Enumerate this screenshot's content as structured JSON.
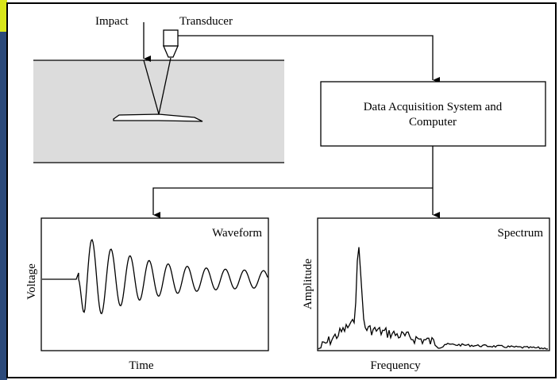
{
  "labels": {
    "impact": "Impact",
    "transducer": "Transducer"
  },
  "system_box": {
    "lines": [
      "Data Acquisition System and",
      "Computer"
    ]
  },
  "waveform": {
    "title": "Waveform",
    "y_label": "Voltage",
    "x_label": "Time"
  },
  "spectrum": {
    "title": "Spectrum",
    "y_label": "Amplitude",
    "x_label": "Frequency"
  }
}
